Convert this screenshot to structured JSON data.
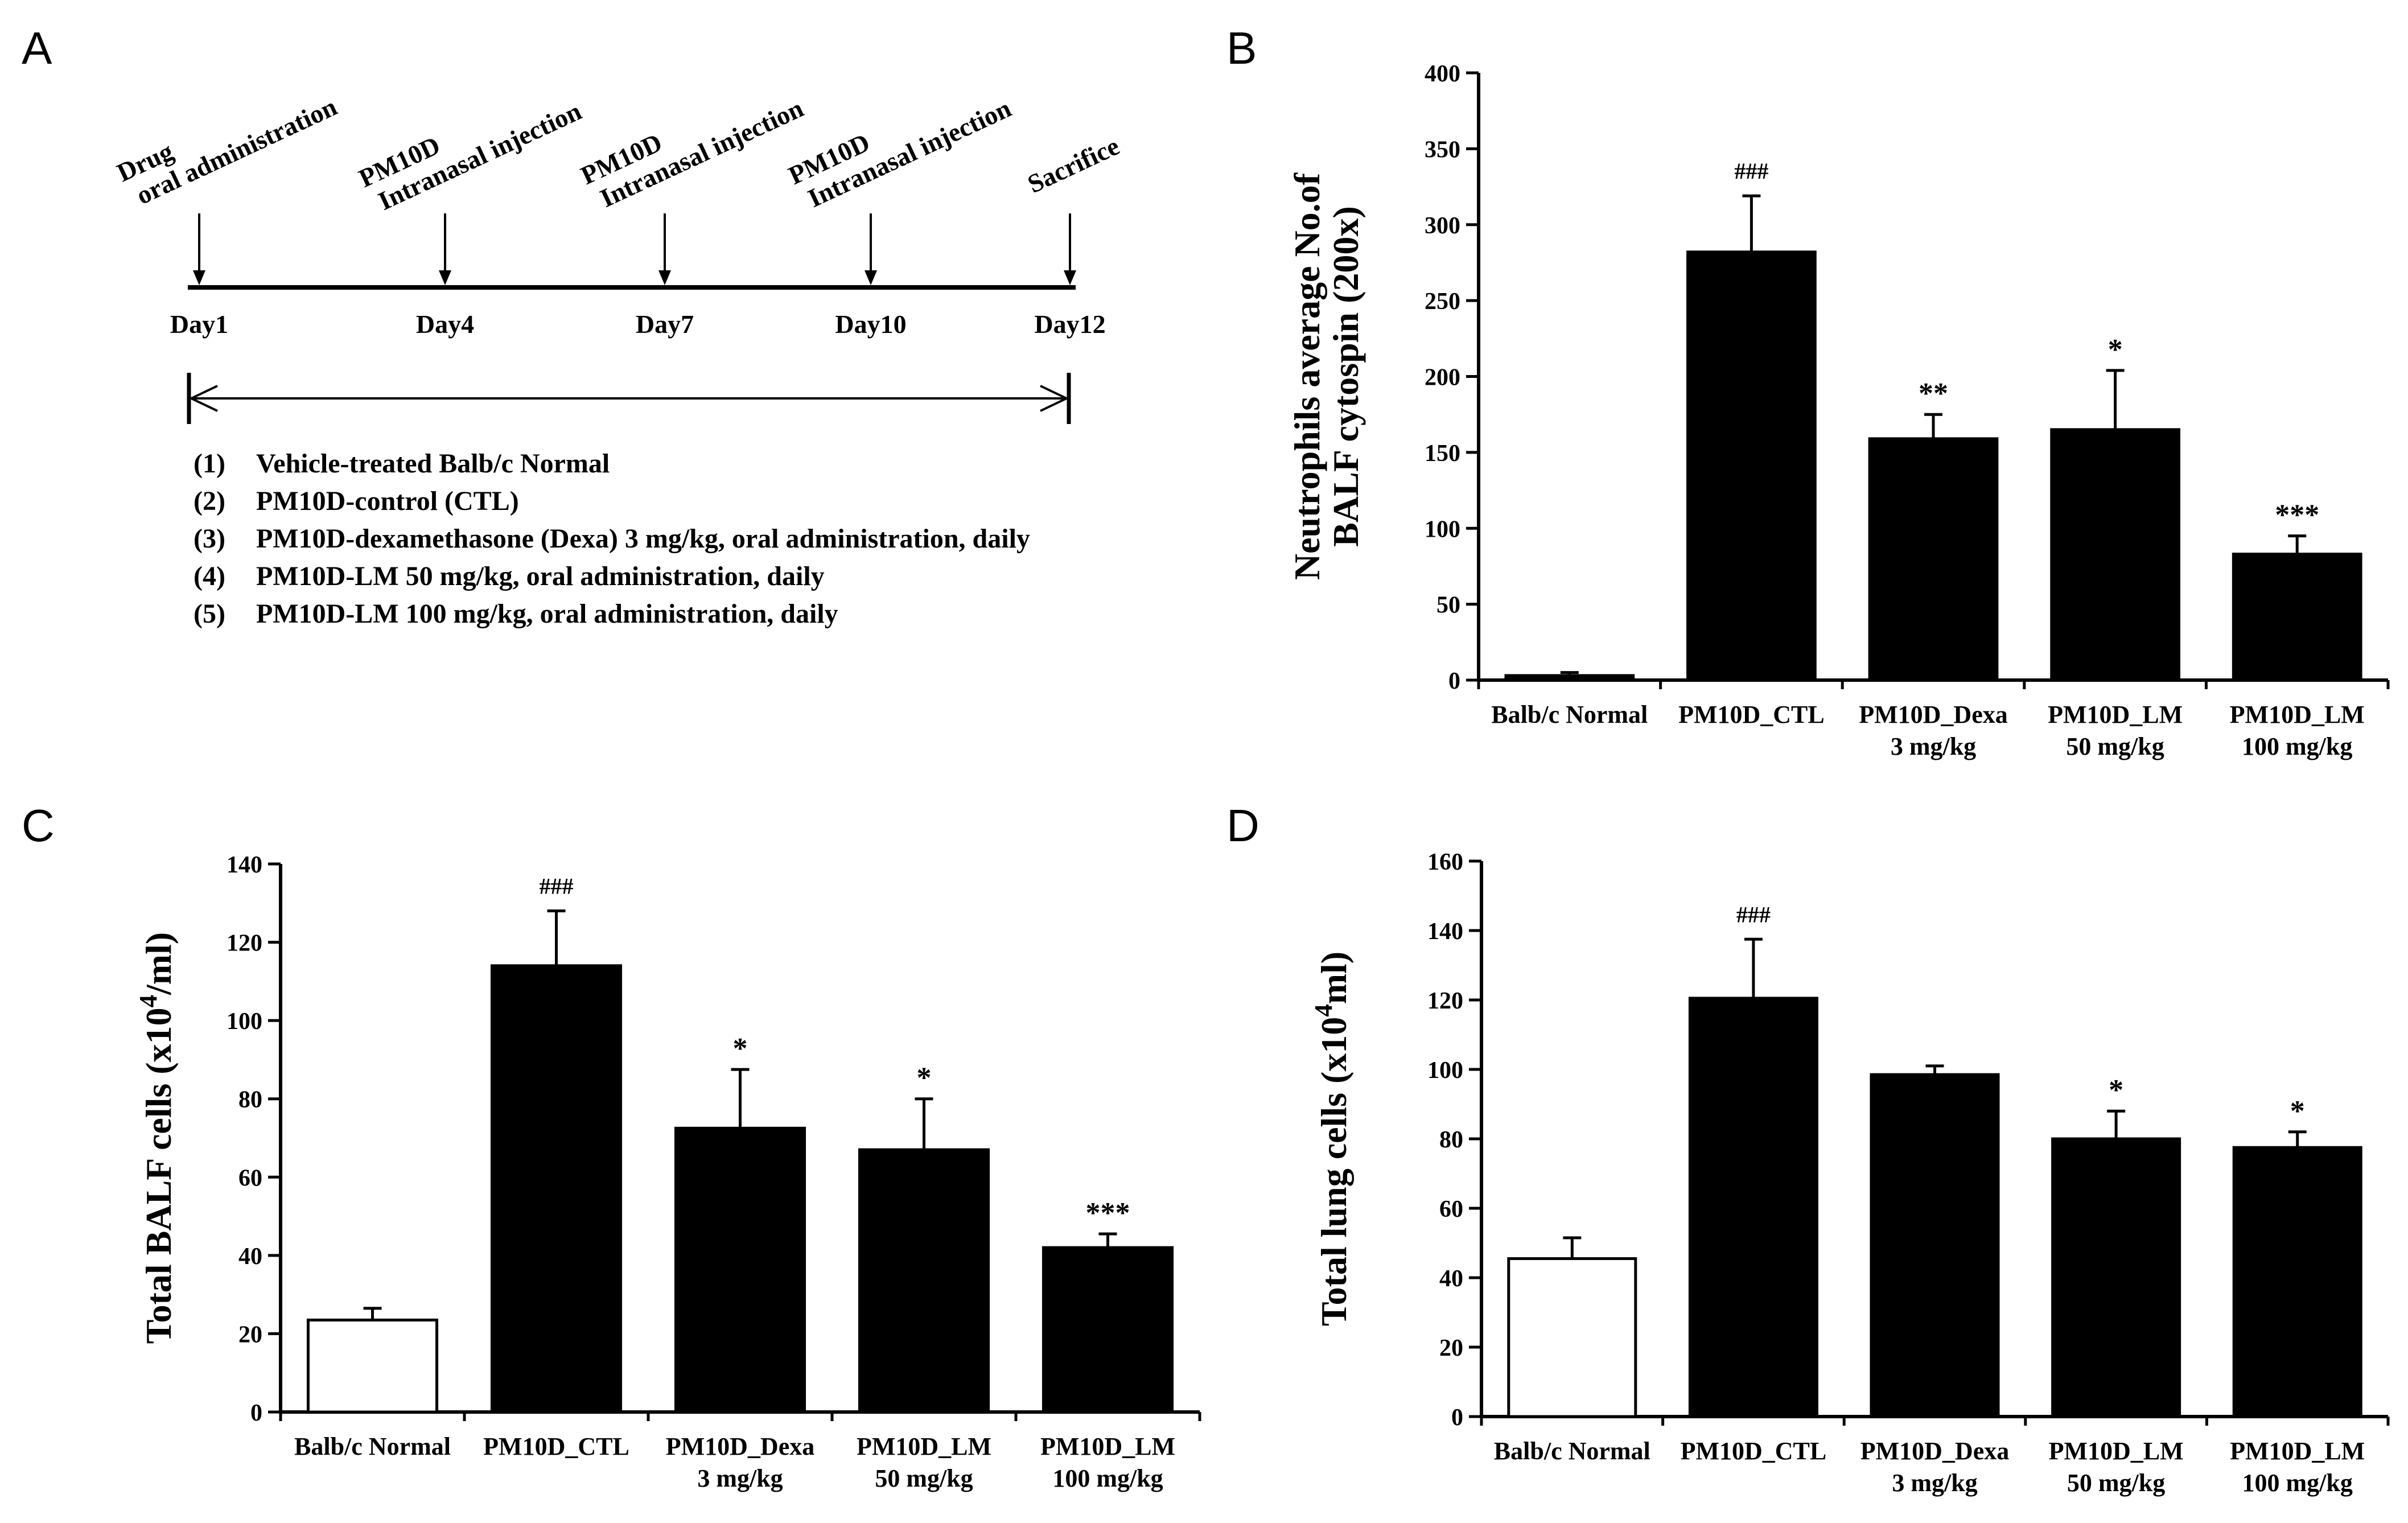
{
  "panels": {
    "A": {
      "letter": "A",
      "events": [
        {
          "lines": [
            "Drug",
            "oral administration"
          ],
          "day": "Day1"
        },
        {
          "lines": [
            "PM10D",
            "Intranasal injection"
          ],
          "day": "Day4"
        },
        {
          "lines": [
            "PM10D",
            "Intranasal injection"
          ],
          "day": "Day7"
        },
        {
          "lines": [
            "PM10D",
            "Intranasal injection"
          ],
          "day": "Day10"
        },
        {
          "lines": [
            "Sacrifice"
          ],
          "day": "Day12"
        }
      ],
      "groups": [
        {
          "num": "(1)",
          "text": "Vehicle-treated Balb/c Normal"
        },
        {
          "num": "(2)",
          "text": "PM10D-control (CTL)"
        },
        {
          "num": "(3)",
          "text": "PM10D-dexamethasone (Dexa) 3 mg/kg, oral administration, daily"
        },
        {
          "num": "(4)",
          "text": "PM10D-LM 50 mg/kg, oral administration, daily"
        },
        {
          "num": "(5)",
          "text": "PM10D-LM 100 mg/kg, oral administration, daily"
        }
      ]
    },
    "B": {
      "letter": "B"
    },
    "C": {
      "letter": "C"
    },
    "D": {
      "letter": "D"
    }
  },
  "chart_data": [
    {
      "panel": "B",
      "type": "bar",
      "categories": [
        [
          "Balb/c Normal"
        ],
        [
          "PM10D_CTL"
        ],
        [
          "PM10D_Dexa",
          "3 mg/kg"
        ],
        [
          "PM10D_LM",
          "50 mg/kg"
        ],
        [
          "PM10D_LM",
          "100 mg/kg"
        ]
      ],
      "values": [
        3,
        282,
        159,
        165,
        83
      ],
      "errors": [
        2,
        37,
        16,
        39,
        12
      ],
      "significance": [
        "",
        "###",
        "**",
        "*",
        "***"
      ],
      "bar_colors": [
        "#000000",
        "#000000",
        "#000000",
        "#000000",
        "#000000"
      ],
      "ylabel": [
        "Neutrophils average No.of",
        "BALF cytospin (200x)"
      ],
      "ylim": [
        0,
        400
      ],
      "yticks": [
        0,
        50,
        100,
        150,
        200,
        250,
        300,
        350,
        400
      ]
    },
    {
      "panel": "C",
      "type": "bar",
      "categories": [
        [
          "Balb/c Normal"
        ],
        [
          "PM10D_CTL"
        ],
        [
          "PM10D_Dexa",
          "3 mg/kg"
        ],
        [
          "PM10D_LM",
          "50 mg/kg"
        ],
        [
          "PM10D_LM",
          "100 mg/kg"
        ]
      ],
      "values": [
        23.5,
        114,
        72.5,
        67,
        42
      ],
      "errors": [
        3,
        14,
        15,
        13,
        3.5
      ],
      "significance": [
        "",
        "###",
        "*",
        "*",
        "***"
      ],
      "bar_colors": [
        "#ffffff",
        "#000000",
        "#000000",
        "#000000",
        "#000000"
      ],
      "ylabel": "Total  BALF cells (x10⁴/ml)",
      "ylim": [
        0,
        140
      ],
      "yticks": [
        0,
        20,
        40,
        60,
        80,
        100,
        120,
        140
      ]
    },
    {
      "panel": "D",
      "type": "bar",
      "categories": [
        [
          "Balb/c Normal"
        ],
        [
          "PM10D_CTL"
        ],
        [
          "PM10D_Dexa",
          "3 mg/kg"
        ],
        [
          "PM10D_LM",
          "50 mg/kg"
        ],
        [
          "PM10D_LM",
          "100 mg/kg"
        ]
      ],
      "values": [
        45.5,
        120.5,
        98.5,
        80,
        77.5
      ],
      "errors": [
        6,
        17,
        2.5,
        8,
        4.5
      ],
      "significance": [
        "",
        "###",
        "",
        "*",
        "*"
      ],
      "bar_colors": [
        "#ffffff",
        "#000000",
        "#000000",
        "#000000",
        "#000000"
      ],
      "ylabel": "Total  lung cells (x10⁴ml)",
      "ylim": [
        0,
        160
      ],
      "yticks": [
        0,
        20,
        40,
        60,
        80,
        100,
        120,
        140,
        160
      ]
    }
  ]
}
